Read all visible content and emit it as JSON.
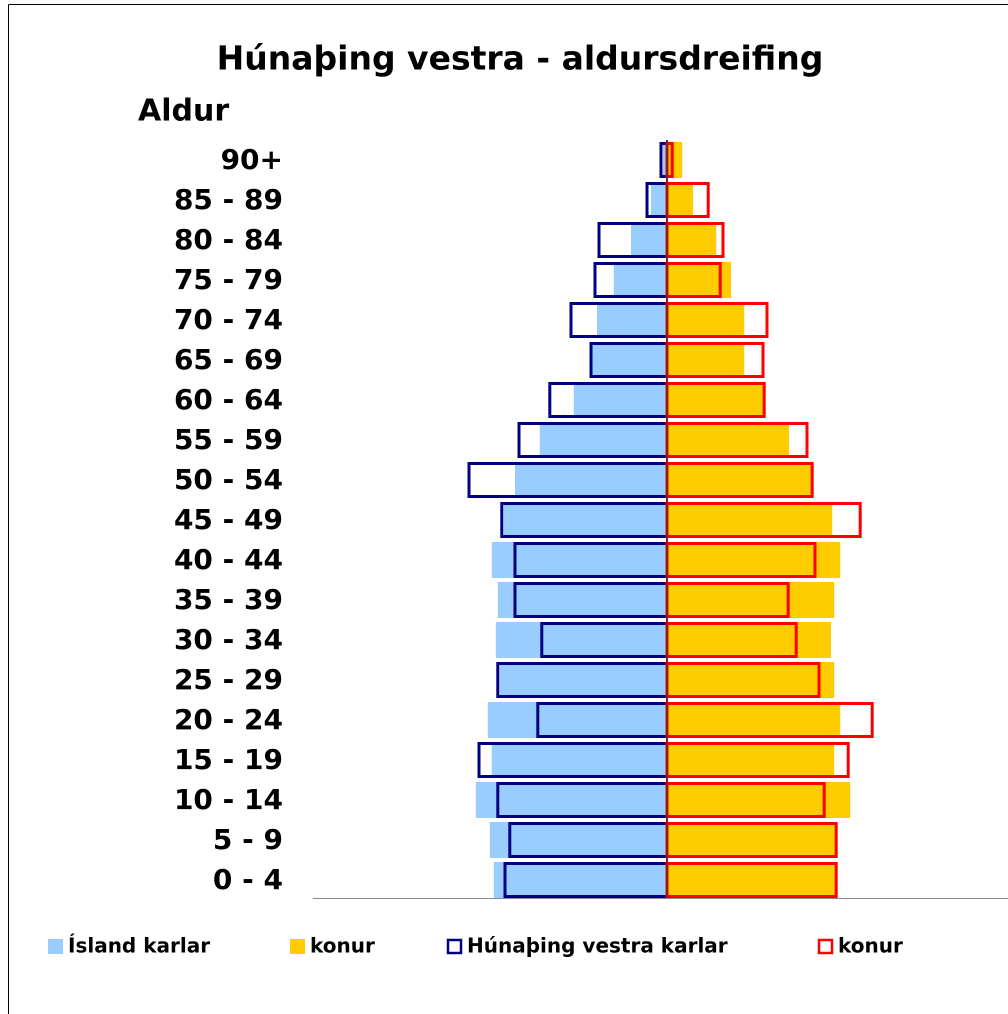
{
  "chart_data": {
    "type": "pyramid",
    "title": "Húnaþing vestra - aldursdreifing",
    "y_label": "Aldur",
    "categories": [
      "0 - 4",
      "5 - 9",
      "10 - 14",
      "15 - 19",
      "20 - 24",
      "25 - 29",
      "30 - 34",
      "35 - 39",
      "40 - 44",
      "45 - 49",
      "50 - 54",
      "55 - 59",
      "60 - 64",
      "65 - 69",
      "70 - 74",
      "75 - 79",
      "80 - 84",
      "85 - 89",
      "90+"
    ],
    "xlim": [
      -8.85,
      8.5
    ],
    "series": [
      {
        "name": "Ísland karlar",
        "color": "#99ccff",
        "style": "fill",
        "values": [
          -4.33,
          -4.43,
          -4.78,
          -4.38,
          -4.48,
          -4.18,
          -4.28,
          -4.23,
          -4.38,
          -4.08,
          -3.8,
          -3.18,
          -2.33,
          -1.88,
          -1.75,
          -1.33,
          -0.9,
          -0.4,
          -0.1
        ]
      },
      {
        "name": "konur",
        "color": "#ffcc00",
        "style": "fill",
        "values": [
          4.2,
          4.23,
          4.58,
          4.18,
          4.33,
          4.18,
          4.1,
          4.18,
          4.33,
          4.13,
          3.6,
          3.05,
          2.43,
          1.93,
          1.93,
          1.6,
          1.23,
          0.65,
          0.38
        ]
      },
      {
        "name": "Húnaþing vestra karlar",
        "color": "#000080",
        "style": "outline",
        "values": [
          -4.05,
          -3.93,
          -4.23,
          -4.7,
          -3.23,
          -4.23,
          -3.13,
          -3.8,
          -3.8,
          -4.13,
          -4.95,
          -3.7,
          -2.93,
          -1.9,
          -2.4,
          -1.8,
          -1.7,
          -0.5,
          -0.15
        ]
      },
      {
        "name": "konur",
        "color": "#ff0000",
        "style": "outline",
        "values": [
          4.23,
          4.23,
          3.93,
          4.53,
          5.13,
          3.8,
          3.23,
          3.03,
          3.7,
          4.83,
          3.63,
          3.5,
          2.43,
          2.4,
          2.5,
          1.33,
          1.4,
          1.03,
          0.13
        ]
      }
    ]
  }
}
